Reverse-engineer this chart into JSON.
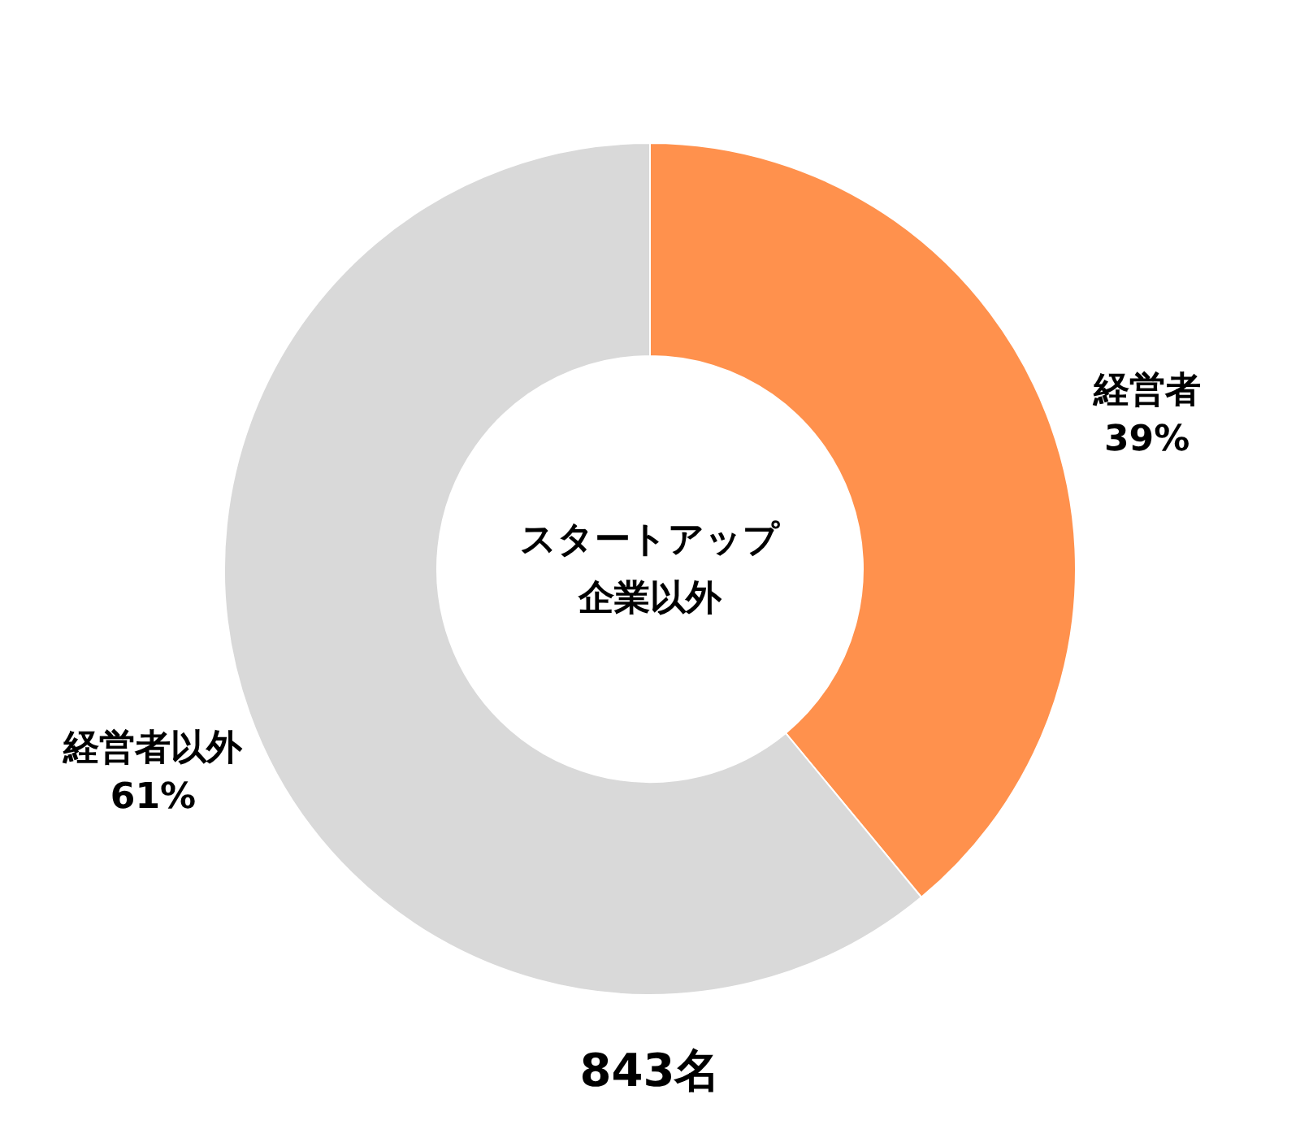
{
  "chart_data": {
    "type": "donut",
    "title": "スタートアップ",
    "subtitle": "企業以外",
    "categories": [
      "経営者",
      "経営者以外"
    ],
    "values": [
      39,
      61
    ],
    "colors": [
      "#ff914d",
      "#d9d9d9"
    ],
    "value_labels": [
      "39%",
      "61%"
    ],
    "annotations": [
      "843名"
    ]
  }
}
